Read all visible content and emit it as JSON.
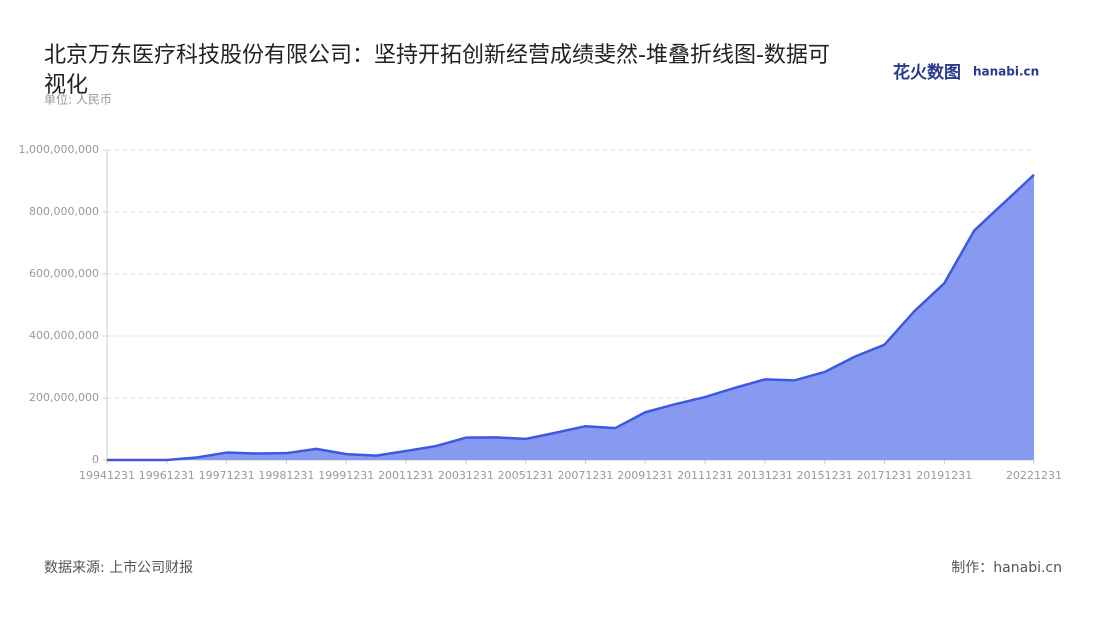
{
  "chart_data": {
    "type": "area",
    "title": "北京万东医疗科技股份有限公司：坚持开拓创新经营成绩斐然-堆叠折线图-数据可视化",
    "unit": "单位: 人民币",
    "source": "数据来源: 上市公司财报",
    "credit": "制作：hanabi.cn",
    "logo": "花火数图",
    "logo_site": "hanabi.cn",
    "categories": [
      "19941231",
      null,
      "19961231",
      null,
      "19971231",
      null,
      "19981231",
      null,
      "19991231",
      null,
      "20011231",
      null,
      "20031231",
      null,
      "20051231",
      null,
      "20071231",
      null,
      "20091231",
      null,
      "20111231",
      null,
      "20131231",
      null,
      "20151231",
      null,
      "20171231",
      null,
      "20191231",
      null,
      null,
      "20221231"
    ],
    "values": [
      0,
      0,
      0,
      8000000,
      24000000,
      21000000,
      22000000,
      36000000,
      19000000,
      14000000,
      29000000,
      45000000,
      72000000,
      73000000,
      68000000,
      88000000,
      109000000,
      103000000,
      154000000,
      180000000,
      203000000,
      233000000,
      260000000,
      257000000,
      284000000,
      333000000,
      372000000,
      480000000,
      570000000,
      740000000,
      830000000,
      920000000
    ],
    "color": "#3d59e0",
    "fill_color": "#8899f2",
    "ylim": [
      0,
      1000000000
    ],
    "yticks": [
      0,
      {
        "value": 200000000,
        "label": "200,000,000"
      },
      {
        "value": 400000000,
        "label": "400,000,000"
      },
      {
        "value": 600000000,
        "label": "600,000,000"
      },
      {
        "value": 800000000,
        "label": "800,000,000"
      },
      {
        "value": 1000000000,
        "label": "1,000,000,000"
      }
    ],
    "grid": true
  }
}
